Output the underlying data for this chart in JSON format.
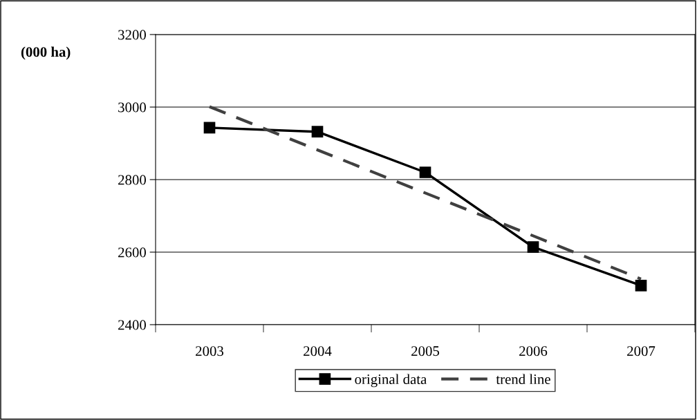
{
  "chart_data": {
    "type": "line",
    "ylabel": "(000 ha)",
    "categories": [
      "2003",
      "2004",
      "2005",
      "2006",
      "2007"
    ],
    "series": [
      {
        "name": "original data",
        "color": "#000000",
        "marker": "square",
        "line_style": "solid",
        "values": [
          2943,
          2932,
          2820,
          2614,
          2508
        ]
      },
      {
        "name": "trend line",
        "color": "#404040",
        "marker": "none",
        "line_style": "dashed",
        "values": [
          3001,
          2882,
          2763,
          2645,
          2526
        ]
      }
    ],
    "ylim": [
      2400,
      3200
    ],
    "yticks": [
      2400,
      2600,
      2800,
      3000,
      3200
    ],
    "grid": "y",
    "legend": "bottom"
  }
}
